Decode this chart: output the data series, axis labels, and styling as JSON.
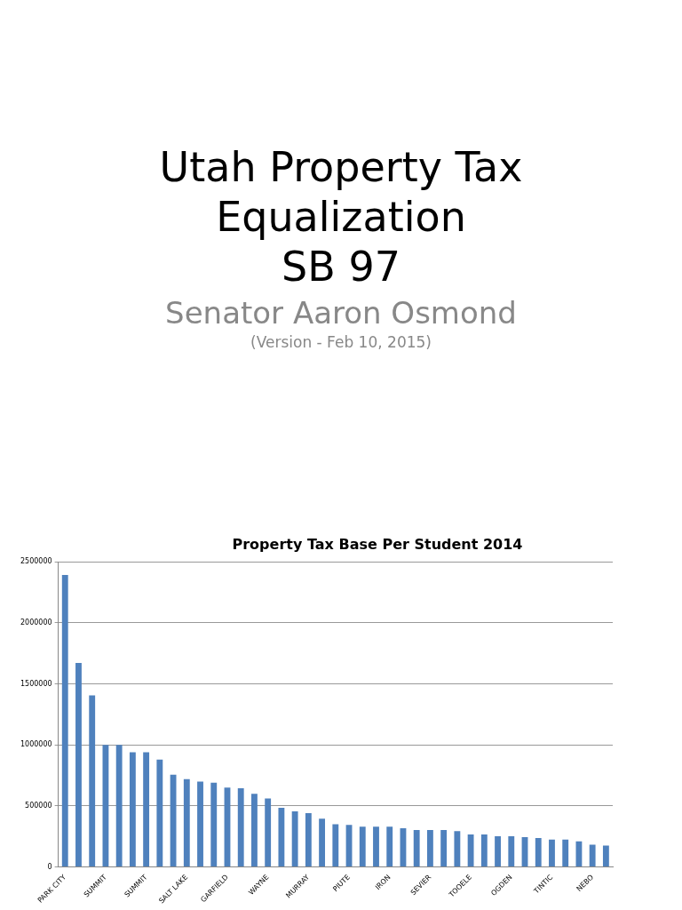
{
  "chart_data": {
    "type": "bar",
    "title": "Utah Property Tax\nEqualization\nSB 97",
    "subtitle": "Senator Aaron Osmond",
    "annotations": [
      "(Version - Feb 10, 2015)",
      "Property Tax Base Per Student 2014"
    ],
    "categories": [
      "PARK CITY",
      null,
      null,
      "SUMMIT",
      null,
      null,
      "SUMMIT",
      null,
      null,
      "SALT LAKE",
      null,
      null,
      "GARFIELD",
      null,
      null,
      "WAYNE",
      null,
      null,
      "MURRAY",
      null,
      null,
      "PIUTE",
      null,
      null,
      "IRON",
      null,
      null,
      "SEVIER",
      null,
      null,
      "TOOELE",
      null,
      null,
      "OGDEN",
      null,
      null,
      "TINTIC",
      null,
      null,
      "NEBO",
      null
    ],
    "values": [
      2390000,
      1670000,
      1405000,
      1000000,
      1000000,
      940000,
      940000,
      880000,
      755000,
      720000,
      700000,
      690000,
      650000,
      645000,
      600000,
      560000,
      485000,
      455000,
      440000,
      395000,
      350000,
      345000,
      330000,
      330000,
      330000,
      317000,
      303000,
      303000,
      303000,
      294000,
      266000,
      266000,
      252000,
      252000,
      245000,
      238000,
      224000,
      224000,
      210000,
      182000,
      175000
    ],
    "color": "#4f81bd",
    "ylim": [
      0,
      2500000
    ],
    "yticks": [
      0,
      500000,
      1000000,
      1500000,
      2000000,
      2500000
    ],
    "grid": "y",
    "legend": false
  }
}
